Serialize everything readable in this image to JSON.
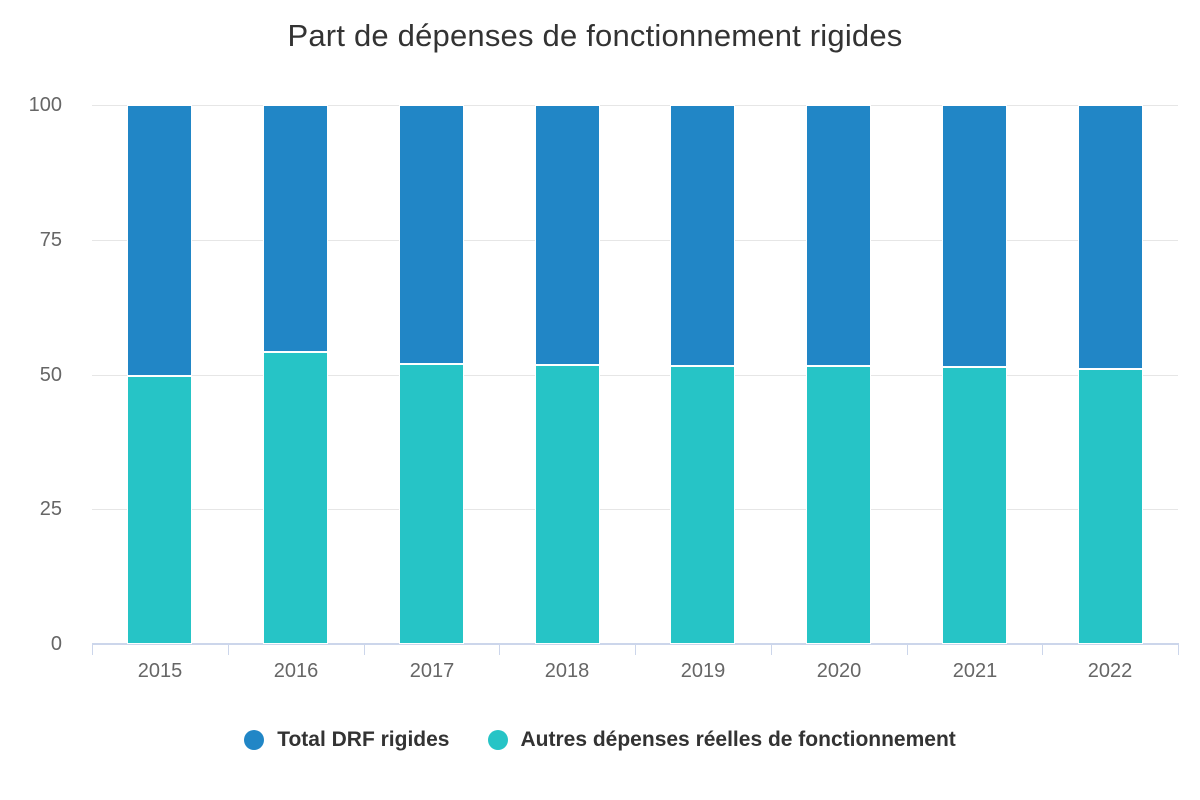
{
  "chart_data": {
    "type": "bar",
    "stacked": true,
    "title": "Part de dépenses de fonctionnement rigides",
    "categories": [
      "2015",
      "2016",
      "2017",
      "2018",
      "2019",
      "2020",
      "2021",
      "2022"
    ],
    "series": [
      {
        "name": "Total DRF rigides",
        "color": "#2186c6",
        "values": [
          50.2,
          45.9,
          48.0,
          48.3,
          48.4,
          48.5,
          48.6,
          49.0
        ]
      },
      {
        "name": "Autres dépenses réelles de fonctionnement",
        "color": "#26c4c6",
        "values": [
          49.8,
          54.1,
          52.0,
          51.7,
          51.6,
          51.5,
          51.4,
          51.0
        ]
      }
    ],
    "stack_total": 100,
    "ylim": [
      0,
      100
    ],
    "yticks": [
      0,
      25,
      50,
      75,
      100
    ],
    "xlabel": "",
    "ylabel": "",
    "grid": true,
    "legend_position": "bottom"
  },
  "colors": {
    "background": "#ffffff",
    "title_text": "#333333",
    "tick_label": "#666666",
    "legend_text": "#333333",
    "grid_line": "#e6e6e6",
    "axis_line": "#ccd6eb",
    "segment_border": "#ffffff"
  }
}
